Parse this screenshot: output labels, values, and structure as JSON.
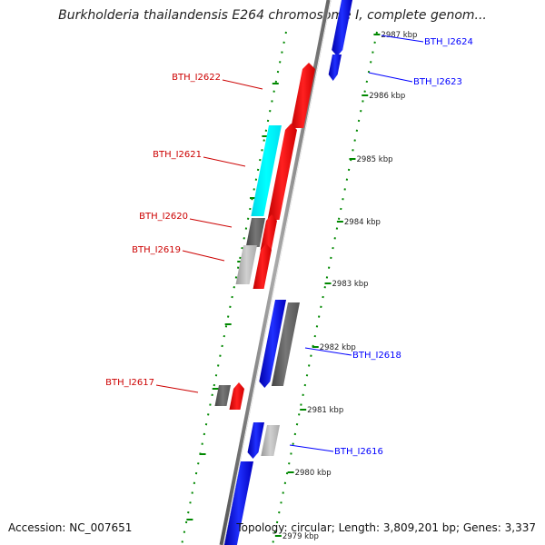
{
  "title": "Burkholderia thailandensis E264 chromosome I, complete genom...",
  "footer": {
    "accession": "Accession: NC_007651",
    "topology": "Topology: circular; Length: 3,809,201 bp; Genes: 3,337"
  },
  "colors": {
    "forward_gene": "#ff0000",
    "reverse_gene": "#0000ff",
    "highlight_gene": "#00ffff",
    "dark_gray_gene": "#666666",
    "light_gray_gene": "#bbbbbb",
    "tick_marks": "#008800",
    "backbone": "#777777"
  },
  "ticks": [
    {
      "label": "2987 kbp"
    },
    {
      "label": "2986 kbp"
    },
    {
      "label": "2985 kbp"
    },
    {
      "label": "2984 kbp"
    },
    {
      "label": "2983 kbp"
    },
    {
      "label": "2982 kbp"
    },
    {
      "label": "2981 kbp"
    },
    {
      "label": "2980 kbp"
    },
    {
      "label": "2979 kbp"
    }
  ],
  "genes": [
    {
      "label": "BTH_I2624",
      "color": "blue"
    },
    {
      "label": "BTH_I2623",
      "color": "blue"
    },
    {
      "label": "BTH_I2622",
      "color": "red"
    },
    {
      "label": "BTH_I2621",
      "color": "red"
    },
    {
      "label": "BTH_I2620",
      "color": "red"
    },
    {
      "label": "BTH_I2619",
      "color": "red"
    },
    {
      "label": "BTH_I2618",
      "color": "blue"
    },
    {
      "label": "BTH_I2617",
      "color": "red"
    },
    {
      "label": "BTH_I2616",
      "color": "blue"
    }
  ]
}
